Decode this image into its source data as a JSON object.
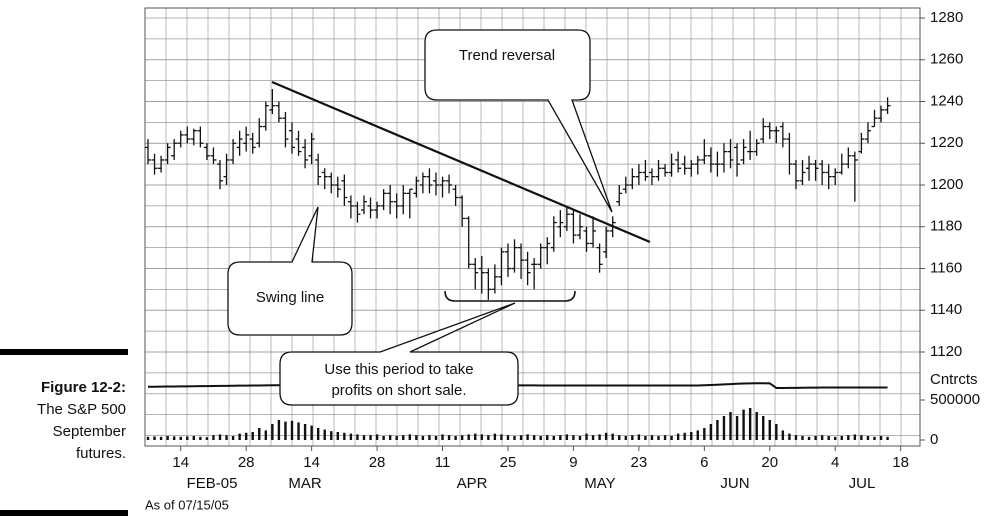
{
  "chart_data": {
    "type": "ohlc",
    "categories": [
      null,
      null,
      null,
      null,
      null,
      "14",
      null,
      null,
      null,
      null,
      null,
      null,
      null,
      null,
      null,
      "28",
      null,
      null,
      null,
      null,
      null,
      null,
      null,
      null,
      null,
      "14",
      null,
      null,
      null,
      null,
      null,
      null,
      null,
      null,
      null,
      "28",
      null,
      null,
      null,
      null,
      null,
      null,
      null,
      null,
      null,
      "11",
      null,
      null,
      null,
      null,
      null,
      null,
      null,
      null,
      null,
      "25",
      null,
      null,
      null,
      null,
      null,
      null,
      null,
      null,
      null,
      "9",
      null,
      null,
      null,
      null,
      null,
      null,
      null,
      null,
      null,
      "23",
      null,
      null,
      null,
      null,
      null,
      null,
      null,
      null,
      null,
      "6",
      null,
      null,
      null,
      null,
      null,
      null,
      null,
      null,
      null,
      "20",
      null,
      null,
      null,
      null,
      null,
      null,
      null,
      null,
      null,
      "4",
      null,
      null,
      null,
      null,
      null,
      null,
      null,
      null,
      null,
      "18"
    ],
    "months": [
      "FEB-05",
      "MAR",
      "APR",
      "MAY",
      "JUN",
      "JUL"
    ],
    "as_of": "As of 07/15/05",
    "color": "#111111",
    "open": [
      1218,
      1212,
      1208,
      1212,
      1214,
      1220,
      1224,
      1222,
      1226,
      1218,
      1214,
      1210,
      1204,
      1212,
      1218,
      1220,
      1222,
      1220,
      1228,
      1236,
      1238,
      1232,
      1226,
      1222,
      1218,
      1214,
      1212,
      1206,
      1204,
      1200,
      1202,
      1192,
      1190,
      1188,
      1190,
      1188,
      1190,
      1196,
      1192,
      1190,
      1196,
      1196,
      1200,
      1204,
      1202,
      1200,
      1202,
      1198,
      1194,
      1184,
      1162,
      1160,
      1158,
      1150,
      1156,
      1168,
      1160,
      1170,
      1164,
      1162,
      1162,
      1170,
      1170,
      1180,
      1180,
      1186,
      1176,
      1178,
      1172,
      1170,
      1168,
      1178,
      1192,
      1198,
      1200,
      1204,
      1206,
      1206,
      1204,
      1208,
      1206,
      1212,
      1210,
      1208,
      1210,
      1212,
      1214,
      1210,
      1210,
      1216,
      1218,
      1212,
      1216,
      1216,
      1222,
      1228,
      1226,
      1228,
      1222,
      1210,
      1202,
      1208,
      1210,
      1210,
      1206,
      1204,
      1206,
      1210,
      1214,
      1216,
      1222,
      1228,
      1232,
      1236,
      null,
      null
    ],
    "high": [
      1222,
      1215,
      1214,
      1220,
      1222,
      1226,
      1228,
      1227,
      1228,
      1220,
      1218,
      1212,
      1215,
      1222,
      1226,
      1228,
      1225,
      1232,
      1240,
      1246,
      1240,
      1235,
      1230,
      1226,
      1222,
      1225,
      1215,
      1208,
      1206,
      1204,
      1205,
      1195,
      1192,
      1195,
      1194,
      1192,
      1198,
      1200,
      1196,
      1200,
      1198,
      1204,
      1206,
      1208,
      1206,
      1204,
      1205,
      1200,
      1195,
      1185,
      1165,
      1166,
      1160,
      1162,
      1170,
      1172,
      1174,
      1172,
      1168,
      1165,
      1172,
      1175,
      1185,
      1188,
      1190,
      1188,
      1186,
      1180,
      1185,
      1172,
      1180,
      1185,
      1200,
      1204,
      1208,
      1210,
      1212,
      1208,
      1212,
      1210,
      1215,
      1216,
      1214,
      1212,
      1214,
      1222,
      1218,
      1216,
      1220,
      1222,
      1220,
      1222,
      1226,
      1222,
      1232,
      1230,
      1228,
      1230,
      1225,
      1212,
      1212,
      1214,
      1212,
      1212,
      1210,
      1208,
      1215,
      1218,
      1216,
      1225,
      1230,
      1236,
      1238,
      1242,
      null,
      null
    ],
    "low": [
      1210,
      1205,
      1206,
      1210,
      1212,
      1218,
      1220,
      1219,
      1218,
      1212,
      1210,
      1198,
      1200,
      1210,
      1214,
      1216,
      1215,
      1218,
      1226,
      1234,
      1230,
      1218,
      1215,
      1214,
      1208,
      1210,
      1200,
      1198,
      1196,
      1194,
      1190,
      1184,
      1182,
      1186,
      1184,
      1184,
      1188,
      1186,
      1184,
      1186,
      1184,
      1194,
      1196,
      1196,
      1195,
      1194,
      1196,
      1190,
      1180,
      1160,
      1150,
      1148,
      1145,
      1148,
      1152,
      1156,
      1158,
      1155,
      1152,
      1150,
      1160,
      1162,
      1168,
      1175,
      1178,
      1172,
      1174,
      1168,
      1170,
      1158,
      1165,
      1175,
      1190,
      1196,
      1198,
      1200,
      1202,
      1200,
      1202,
      1204,
      1204,
      1206,
      1205,
      1204,
      1205,
      1210,
      1206,
      1204,
      1206,
      1208,
      1204,
      1210,
      1212,
      1214,
      1220,
      1222,
      1220,
      1218,
      1205,
      1198,
      1200,
      1202,
      1202,
      1200,
      1198,
      1200,
      1205,
      1208,
      1192,
      1215,
      1220,
      1228,
      1230,
      1234,
      null,
      null
    ],
    "close": [
      1212,
      1208,
      1212,
      1218,
      1220,
      1224,
      1222,
      1226,
      1220,
      1214,
      1212,
      1202,
      1212,
      1220,
      1222,
      1224,
      1218,
      1228,
      1238,
      1238,
      1232,
      1222,
      1218,
      1216,
      1212,
      1222,
      1204,
      1204,
      1200,
      1198,
      1194,
      1190,
      1186,
      1192,
      1188,
      1190,
      1196,
      1192,
      1190,
      1196,
      1198,
      1202,
      1204,
      1200,
      1200,
      1202,
      1200,
      1194,
      1184,
      1162,
      1158,
      1158,
      1150,
      1156,
      1168,
      1160,
      1170,
      1164,
      1158,
      1162,
      1170,
      1172,
      1182,
      1182,
      1186,
      1176,
      1180,
      1172,
      1178,
      1162,
      1178,
      1182,
      1196,
      1200,
      1204,
      1206,
      1204,
      1204,
      1208,
      1206,
      1210,
      1208,
      1208,
      1210,
      1212,
      1214,
      1210,
      1210,
      1216,
      1212,
      1210,
      1218,
      1216,
      1220,
      1228,
      1226,
      1226,
      1222,
      1210,
      1202,
      1206,
      1210,
      1208,
      1206,
      1204,
      1206,
      1210,
      1214,
      1212,
      1222,
      1226,
      1232,
      1236,
      1238,
      null,
      null
    ],
    "volume": [
      40000,
      45000,
      40000,
      50000,
      45000,
      40000,
      45000,
      50000,
      40000,
      35000,
      60000,
      70000,
      60000,
      50000,
      80000,
      90000,
      100000,
      150000,
      120000,
      200000,
      250000,
      230000,
      240000,
      220000,
      200000,
      180000,
      150000,
      130000,
      110000,
      100000,
      90000,
      80000,
      70000,
      60000,
      60000,
      70000,
      50000,
      60000,
      50000,
      60000,
      70000,
      60000,
      50000,
      60000,
      50000,
      70000,
      60000,
      50000,
      60000,
      70000,
      80000,
      70000,
      60000,
      80000,
      70000,
      60000,
      50000,
      60000,
      70000,
      60000,
      50000,
      60000,
      50000,
      60000,
      70000,
      60000,
      50000,
      80000,
      60000,
      70000,
      90000,
      80000,
      60000,
      50000,
      60000,
      70000,
      50000,
      60000,
      50000,
      60000,
      50000,
      80000,
      90000,
      100000,
      120000,
      150000,
      200000,
      250000,
      300000,
      350000,
      300000,
      380000,
      400000,
      350000,
      300000,
      250000,
      200000,
      120000,
      80000,
      60000,
      50000,
      40000,
      50000,
      60000,
      50000,
      40000,
      50000,
      60000,
      70000,
      60000,
      50000,
      40000,
      50000,
      40000,
      null,
      null
    ],
    "open_interest": [
      665000,
      666000,
      667000,
      668000,
      669000,
      670000,
      671000,
      672000,
      673000,
      674000,
      675000,
      676000,
      677000,
      678000,
      679000,
      680000,
      681000,
      682000,
      683000,
      684000,
      685000,
      685000,
      685000,
      685000,
      685000,
      685000,
      685000,
      685000,
      685000,
      685000,
      683000,
      683000,
      683000,
      683000,
      683000,
      683000,
      683000,
      683000,
      683000,
      683000,
      683000,
      683000,
      683000,
      683000,
      683000,
      683000,
      683000,
      683000,
      683000,
      683000,
      683000,
      683000,
      683000,
      683000,
      683000,
      683000,
      683000,
      683000,
      683000,
      683000,
      682000,
      682000,
      682000,
      682000,
      682000,
      682000,
      682000,
      682000,
      682000,
      682000,
      682000,
      682000,
      682000,
      682000,
      682000,
      682000,
      682000,
      682000,
      682000,
      682000,
      682000,
      682000,
      682000,
      682000,
      682000,
      684000,
      687000,
      691000,
      695000,
      699000,
      703000,
      706000,
      708000,
      709000,
      709000,
      708000,
      650000,
      650000,
      651000,
      652000,
      653000,
      654000,
      655000,
      656000,
      657000,
      657000,
      657000,
      657000,
      657000,
      656000,
      656000,
      656000,
      656000,
      656000,
      null,
      null
    ],
    "ylim": [
      1120,
      1280
    ],
    "yticks": [
      1120,
      1140,
      1160,
      1180,
      1200,
      1220,
      1240,
      1260,
      1280
    ],
    "y2lim": [
      0,
      500000
    ],
    "y2ticks": [
      0,
      500000
    ],
    "y2_label": "Cntrcts",
    "annotations": {
      "trend": "Trend reversal",
      "swing": "Swing line",
      "period": [
        "Use this period to take",
        "profits on short sale."
      ]
    }
  },
  "caption": {
    "label": "Figure 12-2:",
    "lines": [
      "The S&P 500",
      "September",
      "futures."
    ]
  }
}
